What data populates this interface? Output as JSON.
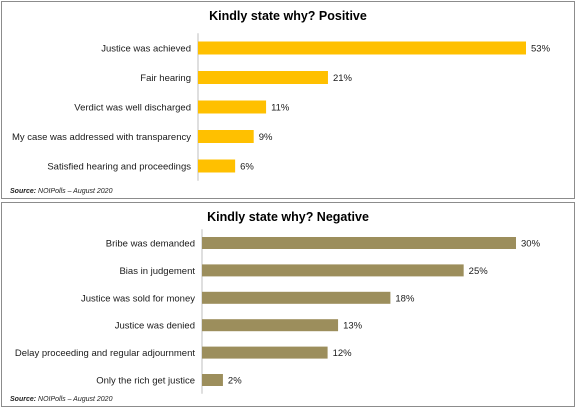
{
  "chart_data": [
    {
      "type": "bar",
      "orientation": "horizontal",
      "title": "Kindly state why? Positive",
      "categories": [
        "Justice was achieved",
        "Fair hearing",
        "Verdict was well discharged",
        "My case was addressed with transparency",
        "Satisfied hearing and proceedings"
      ],
      "values": [
        53,
        21,
        11,
        9,
        6
      ],
      "value_labels": [
        "53%",
        "21%",
        "11%",
        "9%",
        "6%"
      ],
      "unit": "%",
      "bar_color": "#ffc000",
      "xlim": [
        0,
        53
      ],
      "grid": false,
      "source_label": "Source:",
      "source_text": "NOIPolls – August 2020"
    },
    {
      "type": "bar",
      "orientation": "horizontal",
      "title": "Kindly state why? Negative",
      "categories": [
        "Bribe was demanded",
        "Bias in judgement",
        "Justice was sold for money",
        "Justice was denied",
        "Delay proceeding and regular adjournment",
        "Only the rich get justice"
      ],
      "values": [
        30,
        25,
        18,
        13,
        12,
        2
      ],
      "value_labels": [
        "30%",
        "25%",
        "18%",
        "13%",
        "12%",
        "2%"
      ],
      "unit": "%",
      "bar_color": "#9c8e5c",
      "xlim": [
        0,
        30
      ],
      "grid": false,
      "source_label": "Source:",
      "source_text": "NOIPolls – August 2020"
    }
  ]
}
